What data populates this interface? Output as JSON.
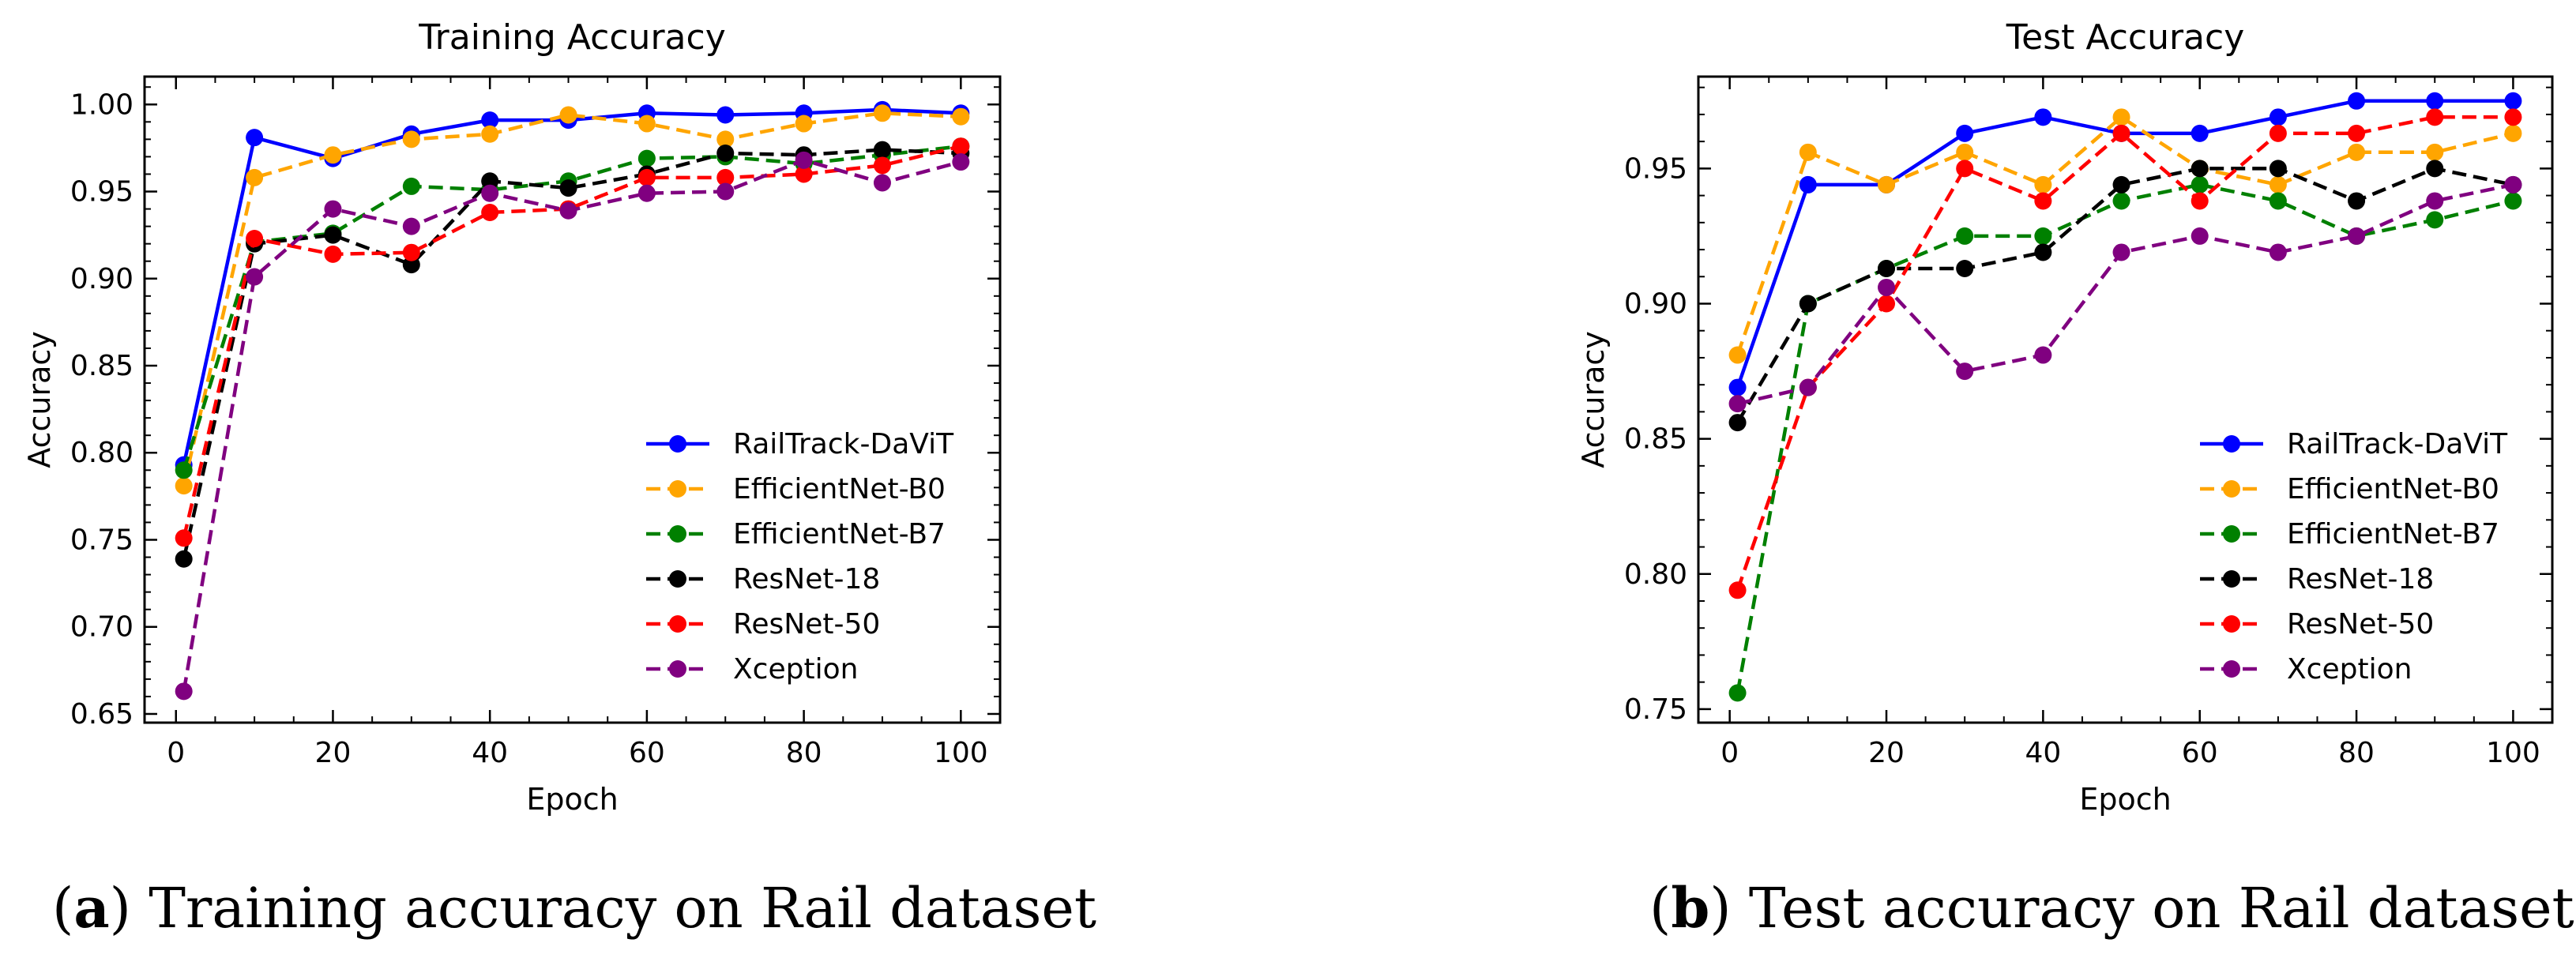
{
  "chart_data": [
    {
      "type": "line",
      "title": "Training Accuracy",
      "xlabel": "Epoch",
      "ylabel": "Accuracy",
      "xlim": [
        -4,
        105
      ],
      "ylim": [
        0.645,
        1.016
      ],
      "xticks": [
        0,
        20,
        40,
        60,
        80,
        100
      ],
      "yticks": [
        0.65,
        0.7,
        0.75,
        0.8,
        0.85,
        0.9,
        0.95,
        1.0
      ],
      "ytick_labels": [
        "0.65",
        "0.70",
        "0.75",
        "0.80",
        "0.85",
        "0.90",
        "0.95",
        "1.00"
      ],
      "x": [
        1,
        10,
        20,
        30,
        40,
        50,
        60,
        70,
        80,
        90,
        100
      ],
      "legend_position": "lower-right",
      "series": [
        {
          "name": "RailTrack-DaViT",
          "color": "#0000ff",
          "style": "solid",
          "values": [
            0.793,
            0.981,
            0.969,
            0.983,
            0.991,
            0.991,
            0.995,
            0.994,
            0.995,
            0.997,
            0.995
          ]
        },
        {
          "name": "EfficientNet-B0",
          "color": "#ffa500",
          "style": "dashed",
          "values": [
            0.781,
            0.958,
            0.971,
            0.98,
            0.983,
            0.994,
            0.989,
            0.98,
            0.989,
            0.995,
            0.993
          ]
        },
        {
          "name": "EfficientNet-B7",
          "color": "#008000",
          "style": "dashed",
          "values": [
            0.79,
            0.921,
            0.926,
            0.953,
            0.951,
            0.956,
            0.969,
            0.97,
            0.966,
            0.971,
            0.976
          ]
        },
        {
          "name": "ResNet-18",
          "color": "#000000",
          "style": "dashed",
          "values": [
            0.739,
            0.92,
            0.925,
            0.908,
            0.956,
            0.952,
            0.96,
            0.972,
            0.971,
            0.974,
            0.972
          ]
        },
        {
          "name": "ResNet-50",
          "color": "#ff0000",
          "style": "dashed",
          "values": [
            0.751,
            0.923,
            0.914,
            0.915,
            0.938,
            0.94,
            0.958,
            0.958,
            0.96,
            0.965,
            0.976
          ]
        },
        {
          "name": "Xception",
          "color": "#800080",
          "style": "dashed",
          "values": [
            0.663,
            0.901,
            0.94,
            0.93,
            0.949,
            0.939,
            0.949,
            0.95,
            0.968,
            0.955,
            0.967
          ]
        }
      ]
    },
    {
      "type": "line",
      "title": "Test Accuracy",
      "xlabel": "Epoch",
      "ylabel": "Accuracy",
      "xlim": [
        -4,
        105
      ],
      "ylim": [
        0.745,
        0.984
      ],
      "xticks": [
        0,
        20,
        40,
        60,
        80,
        100
      ],
      "yticks": [
        0.75,
        0.8,
        0.85,
        0.9,
        0.95
      ],
      "ytick_labels": [
        "0.75",
        "0.80",
        "0.85",
        "0.90",
        "0.95"
      ],
      "x": [
        1,
        10,
        20,
        30,
        40,
        50,
        60,
        70,
        80,
        90,
        100
      ],
      "legend_position": "lower-right",
      "series": [
        {
          "name": "RailTrack-DaViT",
          "color": "#0000ff",
          "style": "solid",
          "values": [
            0.869,
            0.944,
            0.944,
            0.963,
            0.969,
            0.963,
            0.963,
            0.969,
            0.975,
            0.975,
            0.975
          ]
        },
        {
          "name": "EfficientNet-B0",
          "color": "#ffa500",
          "style": "dashed",
          "values": [
            0.881,
            0.956,
            0.944,
            0.956,
            0.944,
            0.969,
            0.95,
            0.944,
            0.956,
            0.956,
            0.963
          ]
        },
        {
          "name": "EfficientNet-B7",
          "color": "#008000",
          "style": "dashed",
          "values": [
            0.756,
            0.9,
            0.913,
            0.925,
            0.925,
            0.938,
            0.944,
            0.938,
            0.925,
            0.931,
            0.938
          ]
        },
        {
          "name": "ResNet-18",
          "color": "#000000",
          "style": "dashed",
          "values": [
            0.856,
            0.9,
            0.913,
            0.913,
            0.919,
            0.944,
            0.95,
            0.95,
            0.938,
            0.95,
            0.944
          ]
        },
        {
          "name": "ResNet-50",
          "color": "#ff0000",
          "style": "dashed",
          "values": [
            0.794,
            0.869,
            0.9,
            0.95,
            0.938,
            0.963,
            0.938,
            0.963,
            0.963,
            0.969,
            0.969
          ]
        },
        {
          "name": "Xception",
          "color": "#800080",
          "style": "dashed",
          "values": [
            0.863,
            0.869,
            0.906,
            0.875,
            0.881,
            0.919,
            0.925,
            0.919,
            0.925,
            0.938,
            0.944
          ]
        }
      ]
    }
  ],
  "captions": [
    {
      "letter": "a",
      "text": " Training accuracy on Rail dataset"
    },
    {
      "letter": "b",
      "text": " Test accuracy on Rail dataset"
    }
  ]
}
